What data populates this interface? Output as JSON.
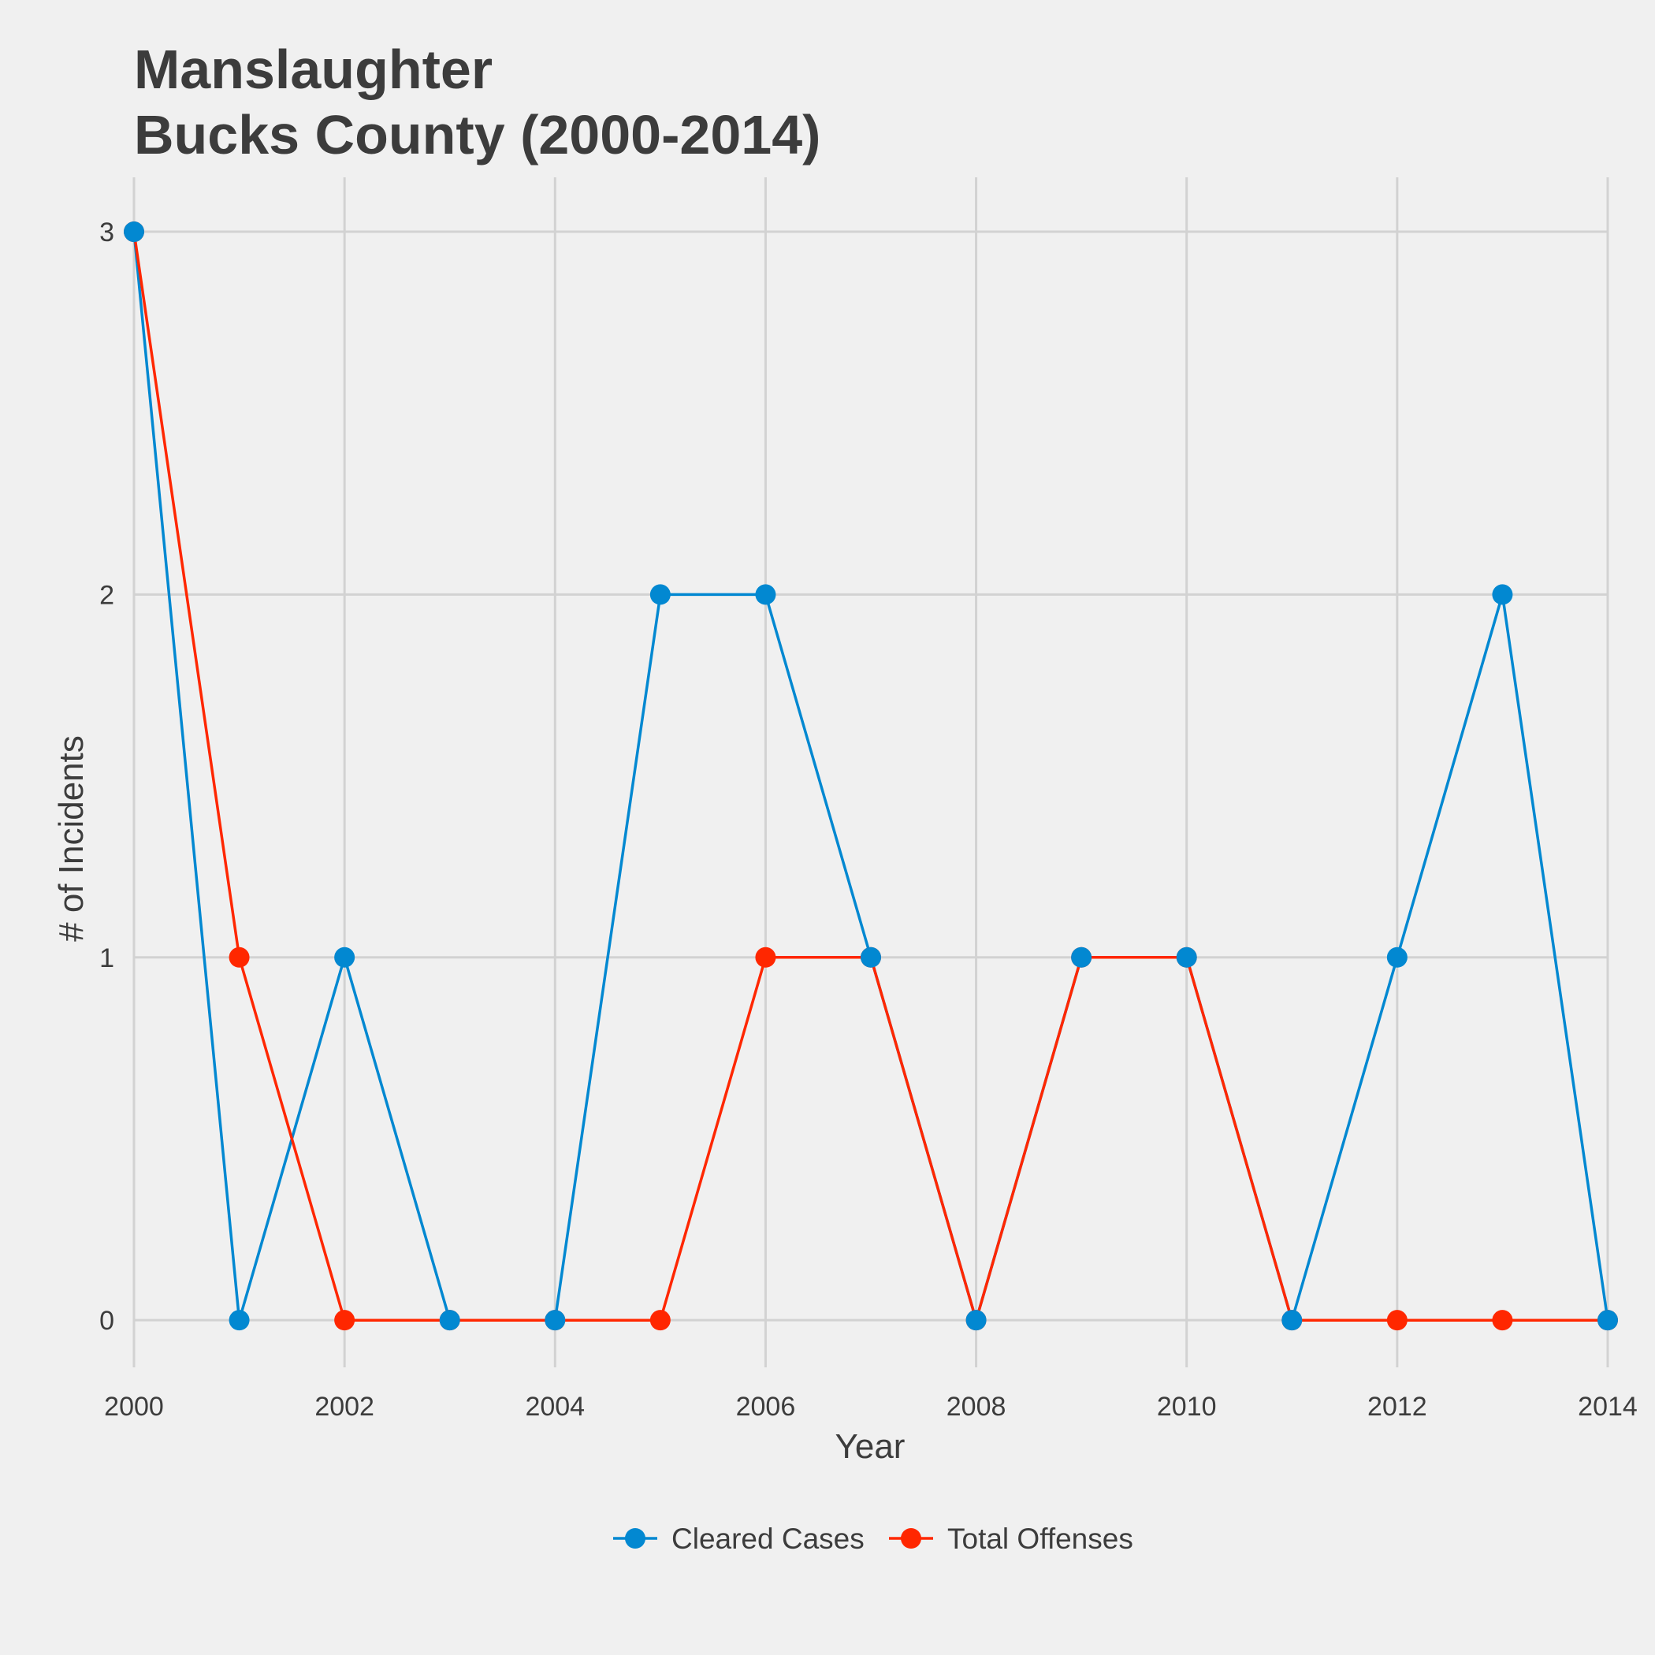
{
  "chart_data": {
    "type": "line",
    "title": "Manslaughter\nBucks County (2000-2014)",
    "title_lines": [
      "Manslaughter",
      "Bucks County (2000-2014)"
    ],
    "xlabel": "Year",
    "ylabel": "# of Incidents",
    "x": [
      2000,
      2001,
      2002,
      2003,
      2004,
      2005,
      2006,
      2007,
      2008,
      2009,
      2010,
      2011,
      2012,
      2013,
      2014
    ],
    "x_ticks": [
      2000,
      2002,
      2004,
      2006,
      2008,
      2010,
      2012,
      2014
    ],
    "y_ticks": [
      0,
      1,
      2,
      3
    ],
    "xlim": [
      2000,
      2014
    ],
    "ylim": [
      -0.13,
      3.15
    ],
    "grid": true,
    "legend_position": "bottom",
    "series": [
      {
        "name": "Cleared Cases",
        "color": "#0288d1",
        "values": [
          3,
          0,
          1,
          0,
          0,
          2,
          2,
          1,
          0,
          1,
          1,
          0,
          1,
          2,
          0
        ]
      },
      {
        "name": "Total Offenses",
        "color": "#ff2700",
        "values": [
          3,
          1,
          0,
          0,
          0,
          0,
          1,
          1,
          0,
          1,
          1,
          0,
          0,
          0,
          0
        ]
      }
    ]
  }
}
